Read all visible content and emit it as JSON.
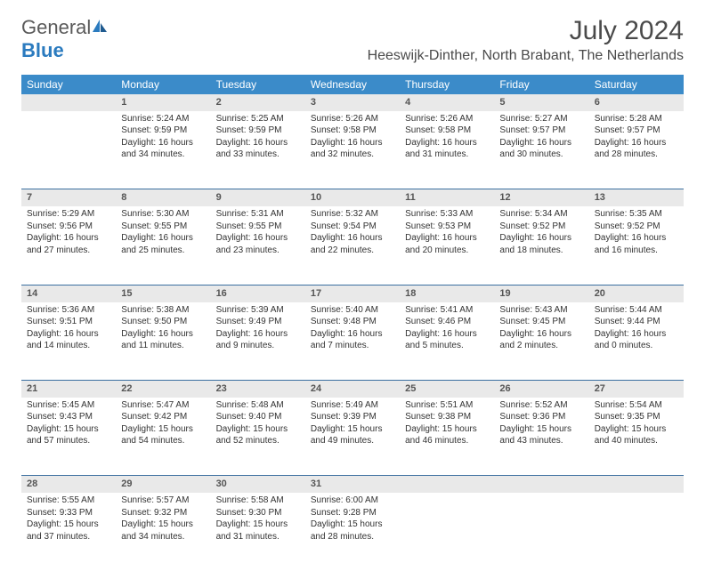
{
  "brand": {
    "part1": "General",
    "part2": "Blue"
  },
  "title": "July 2024",
  "location": "Heeswijk-Dinther, North Brabant, The Netherlands",
  "colors": {
    "header_bg": "#3b8bc9",
    "header_text": "#ffffff",
    "daynum_bg": "#e9e9e9",
    "daynum_text": "#555555",
    "row_divider": "#3b6fa0",
    "body_text": "#333333",
    "title_text": "#4a4a4a"
  },
  "day_headers": [
    "Sunday",
    "Monday",
    "Tuesday",
    "Wednesday",
    "Thursday",
    "Friday",
    "Saturday"
  ],
  "weeks": [
    [
      null,
      {
        "n": "1",
        "sr": "5:24 AM",
        "ss": "9:59 PM",
        "dl": "Daylight: 16 hours and 34 minutes."
      },
      {
        "n": "2",
        "sr": "5:25 AM",
        "ss": "9:59 PM",
        "dl": "Daylight: 16 hours and 33 minutes."
      },
      {
        "n": "3",
        "sr": "5:26 AM",
        "ss": "9:58 PM",
        "dl": "Daylight: 16 hours and 32 minutes."
      },
      {
        "n": "4",
        "sr": "5:26 AM",
        "ss": "9:58 PM",
        "dl": "Daylight: 16 hours and 31 minutes."
      },
      {
        "n": "5",
        "sr": "5:27 AM",
        "ss": "9:57 PM",
        "dl": "Daylight: 16 hours and 30 minutes."
      },
      {
        "n": "6",
        "sr": "5:28 AM",
        "ss": "9:57 PM",
        "dl": "Daylight: 16 hours and 28 minutes."
      }
    ],
    [
      {
        "n": "7",
        "sr": "5:29 AM",
        "ss": "9:56 PM",
        "dl": "Daylight: 16 hours and 27 minutes."
      },
      {
        "n": "8",
        "sr": "5:30 AM",
        "ss": "9:55 PM",
        "dl": "Daylight: 16 hours and 25 minutes."
      },
      {
        "n": "9",
        "sr": "5:31 AM",
        "ss": "9:55 PM",
        "dl": "Daylight: 16 hours and 23 minutes."
      },
      {
        "n": "10",
        "sr": "5:32 AM",
        "ss": "9:54 PM",
        "dl": "Daylight: 16 hours and 22 minutes."
      },
      {
        "n": "11",
        "sr": "5:33 AM",
        "ss": "9:53 PM",
        "dl": "Daylight: 16 hours and 20 minutes."
      },
      {
        "n": "12",
        "sr": "5:34 AM",
        "ss": "9:52 PM",
        "dl": "Daylight: 16 hours and 18 minutes."
      },
      {
        "n": "13",
        "sr": "5:35 AM",
        "ss": "9:52 PM",
        "dl": "Daylight: 16 hours and 16 minutes."
      }
    ],
    [
      {
        "n": "14",
        "sr": "5:36 AM",
        "ss": "9:51 PM",
        "dl": "Daylight: 16 hours and 14 minutes."
      },
      {
        "n": "15",
        "sr": "5:38 AM",
        "ss": "9:50 PM",
        "dl": "Daylight: 16 hours and 11 minutes."
      },
      {
        "n": "16",
        "sr": "5:39 AM",
        "ss": "9:49 PM",
        "dl": "Daylight: 16 hours and 9 minutes."
      },
      {
        "n": "17",
        "sr": "5:40 AM",
        "ss": "9:48 PM",
        "dl": "Daylight: 16 hours and 7 minutes."
      },
      {
        "n": "18",
        "sr": "5:41 AM",
        "ss": "9:46 PM",
        "dl": "Daylight: 16 hours and 5 minutes."
      },
      {
        "n": "19",
        "sr": "5:43 AM",
        "ss": "9:45 PM",
        "dl": "Daylight: 16 hours and 2 minutes."
      },
      {
        "n": "20",
        "sr": "5:44 AM",
        "ss": "9:44 PM",
        "dl": "Daylight: 16 hours and 0 minutes."
      }
    ],
    [
      {
        "n": "21",
        "sr": "5:45 AM",
        "ss": "9:43 PM",
        "dl": "Daylight: 15 hours and 57 minutes."
      },
      {
        "n": "22",
        "sr": "5:47 AM",
        "ss": "9:42 PM",
        "dl": "Daylight: 15 hours and 54 minutes."
      },
      {
        "n": "23",
        "sr": "5:48 AM",
        "ss": "9:40 PM",
        "dl": "Daylight: 15 hours and 52 minutes."
      },
      {
        "n": "24",
        "sr": "5:49 AM",
        "ss": "9:39 PM",
        "dl": "Daylight: 15 hours and 49 minutes."
      },
      {
        "n": "25",
        "sr": "5:51 AM",
        "ss": "9:38 PM",
        "dl": "Daylight: 15 hours and 46 minutes."
      },
      {
        "n": "26",
        "sr": "5:52 AM",
        "ss": "9:36 PM",
        "dl": "Daylight: 15 hours and 43 minutes."
      },
      {
        "n": "27",
        "sr": "5:54 AM",
        "ss": "9:35 PM",
        "dl": "Daylight: 15 hours and 40 minutes."
      }
    ],
    [
      {
        "n": "28",
        "sr": "5:55 AM",
        "ss": "9:33 PM",
        "dl": "Daylight: 15 hours and 37 minutes."
      },
      {
        "n": "29",
        "sr": "5:57 AM",
        "ss": "9:32 PM",
        "dl": "Daylight: 15 hours and 34 minutes."
      },
      {
        "n": "30",
        "sr": "5:58 AM",
        "ss": "9:30 PM",
        "dl": "Daylight: 15 hours and 31 minutes."
      },
      {
        "n": "31",
        "sr": "6:00 AM",
        "ss": "9:28 PM",
        "dl": "Daylight: 15 hours and 28 minutes."
      },
      null,
      null,
      null
    ]
  ]
}
